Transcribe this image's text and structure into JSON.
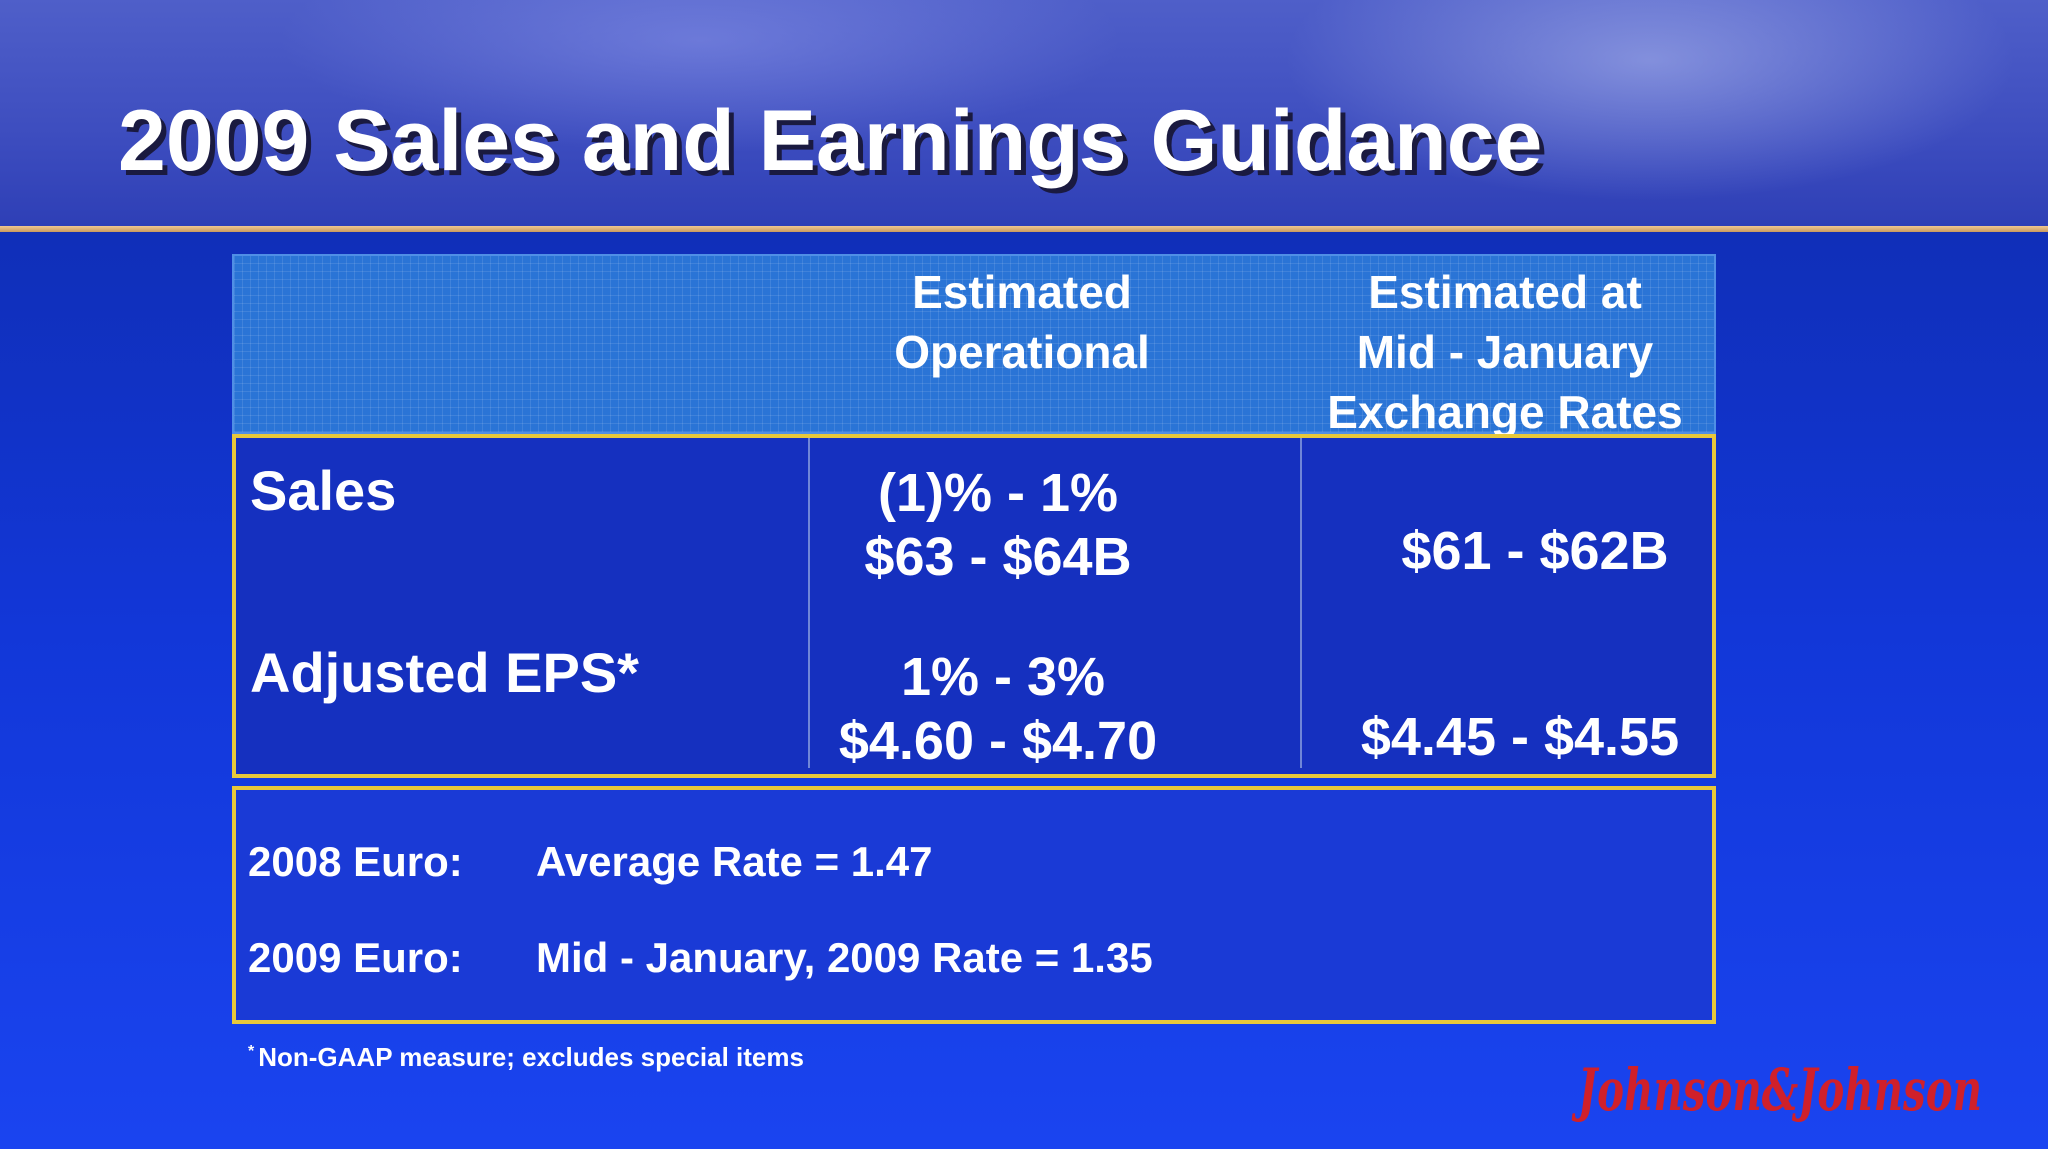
{
  "slide": {
    "title": "2009 Sales and Earnings Guidance"
  },
  "table": {
    "columns": [
      {
        "lines": [
          "Estimated",
          "Operational"
        ]
      },
      {
        "lines": [
          "Estimated at",
          "Mid - January",
          "Exchange Rates"
        ]
      }
    ],
    "rows": [
      {
        "label": "Sales",
        "operational_pct": "(1)% - 1%",
        "operational_value": "$63 - $64B",
        "fx_value": "$61 - $62B"
      },
      {
        "label": "Adjusted EPS*",
        "operational_pct": "1%  -  3%",
        "operational_value": "$4.60 - $4.70",
        "fx_value": "$4.45 - $4.55"
      }
    ]
  },
  "exchange_rates": [
    {
      "label": "2008 Euro:",
      "value": "Average Rate = 1.47"
    },
    {
      "label": "2009 Euro:",
      "value": "Mid - January, 2009 Rate = 1.35"
    }
  ],
  "footnote": {
    "marker": "*",
    "text": "Non-GAAP measure; excludes special items"
  },
  "logo": {
    "text": "Johnson & Johnson",
    "color": "#d0202a"
  }
}
